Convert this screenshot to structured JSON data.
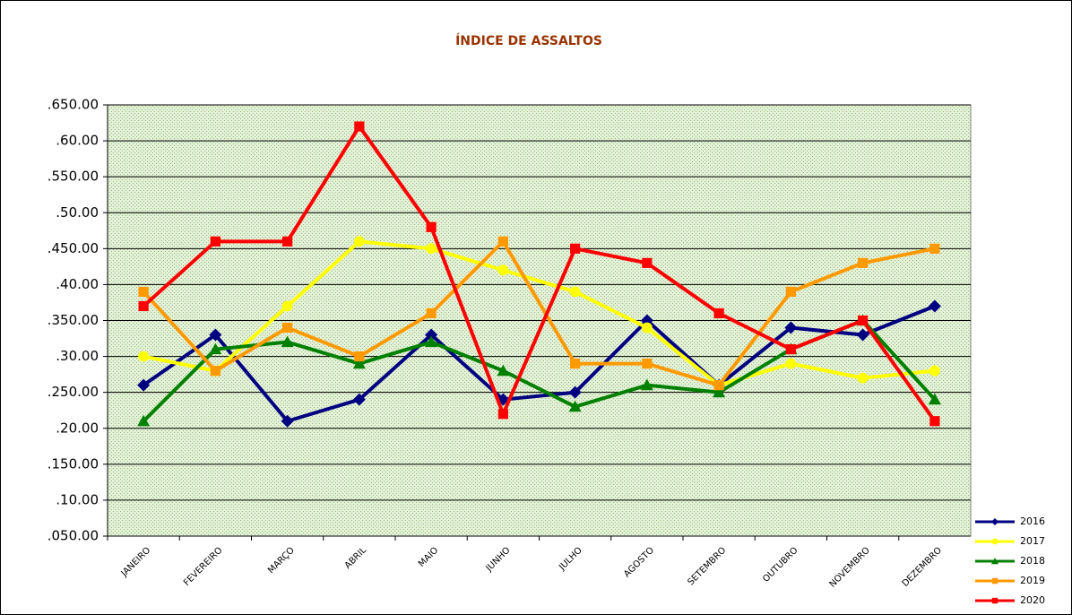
{
  "chart_data": {
    "type": "line",
    "title": "ÍNDICE DE ASSALTOS",
    "categories": [
      "JANEIRO",
      "FEVEREIRO",
      "MARÇO",
      "ABRIL",
      "MAIO",
      "JUNHO",
      "JULHO",
      "AGOSTO",
      "SETEMBRO",
      "OUTUBRO",
      "NOVEMBRO",
      "DEZEMBRO"
    ],
    "ylim": [
      0.05,
      0.65
    ],
    "yticks": [
      {
        "value": 0.05,
        "label": ".050.00"
      },
      {
        "value": 0.1,
        "label": ".10.00"
      },
      {
        "value": 0.15,
        "label": ".150.00"
      },
      {
        "value": 0.2,
        "label": ".20.00"
      },
      {
        "value": 0.25,
        "label": ".250.00"
      },
      {
        "value": 0.3,
        "label": ".30.00"
      },
      {
        "value": 0.35,
        "label": ".350.00"
      },
      {
        "value": 0.4,
        "label": ".40.00"
      },
      {
        "value": 0.45,
        "label": ".450.00"
      },
      {
        "value": 0.5,
        "label": ".50.00"
      },
      {
        "value": 0.55,
        "label": ".550.00"
      },
      {
        "value": 0.6,
        "label": ".60.00"
      },
      {
        "value": 0.65,
        "label": ".650.00"
      }
    ],
    "grid": true,
    "legend": "right",
    "series": [
      {
        "name": "2016",
        "color": "#000080",
        "marker": "diamond",
        "values": [
          0.26,
          0.33,
          0.21,
          0.24,
          0.33,
          0.24,
          0.25,
          0.35,
          0.26,
          0.34,
          0.33,
          0.37
        ]
      },
      {
        "name": "2017",
        "color": "#ffff00",
        "marker": "circle",
        "values": [
          0.3,
          0.28,
          0.37,
          0.46,
          0.45,
          0.42,
          0.39,
          0.34,
          0.26,
          0.29,
          0.27,
          0.28
        ]
      },
      {
        "name": "2018",
        "color": "#008000",
        "marker": "triangle",
        "values": [
          0.21,
          0.31,
          0.32,
          0.29,
          0.32,
          0.28,
          0.23,
          0.26,
          0.25,
          0.31,
          0.35,
          0.24
        ]
      },
      {
        "name": "2019",
        "color": "#ff9900",
        "marker": "square",
        "values": [
          0.39,
          0.28,
          0.34,
          0.3,
          0.36,
          0.46,
          0.29,
          0.29,
          0.26,
          0.39,
          0.43,
          0.45
        ]
      },
      {
        "name": "2020",
        "color": "#ff0000",
        "marker": "square",
        "values": [
          0.37,
          0.46,
          0.46,
          0.62,
          0.48,
          0.22,
          0.45,
          0.43,
          0.36,
          0.31,
          0.35,
          0.21
        ]
      }
    ]
  }
}
